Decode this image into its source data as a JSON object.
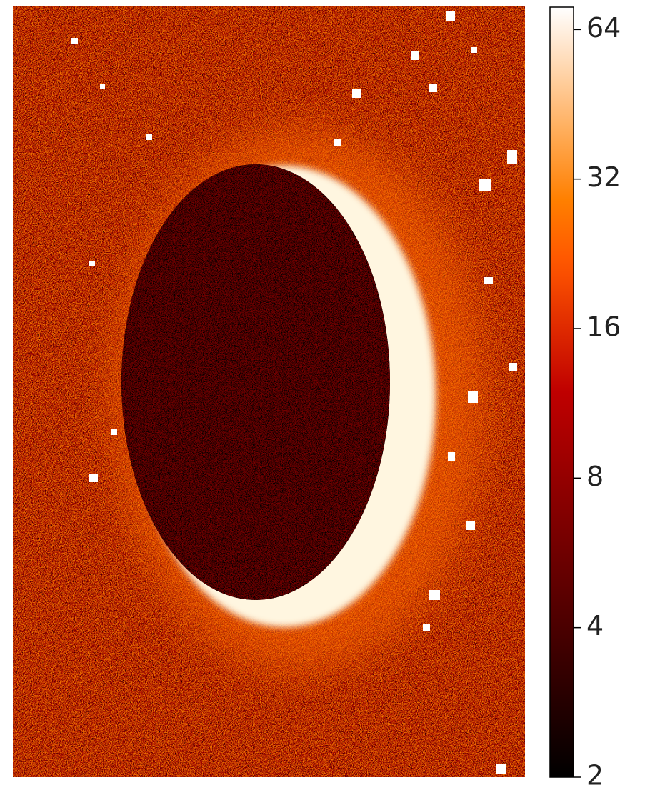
{
  "chart_data": {
    "type": "image",
    "colorbar": {
      "scale": "log",
      "clim": [
        2,
        71
      ],
      "ticks": [
        2,
        4,
        8,
        16,
        32,
        64
      ],
      "colormap": "gist_heat"
    }
  }
}
